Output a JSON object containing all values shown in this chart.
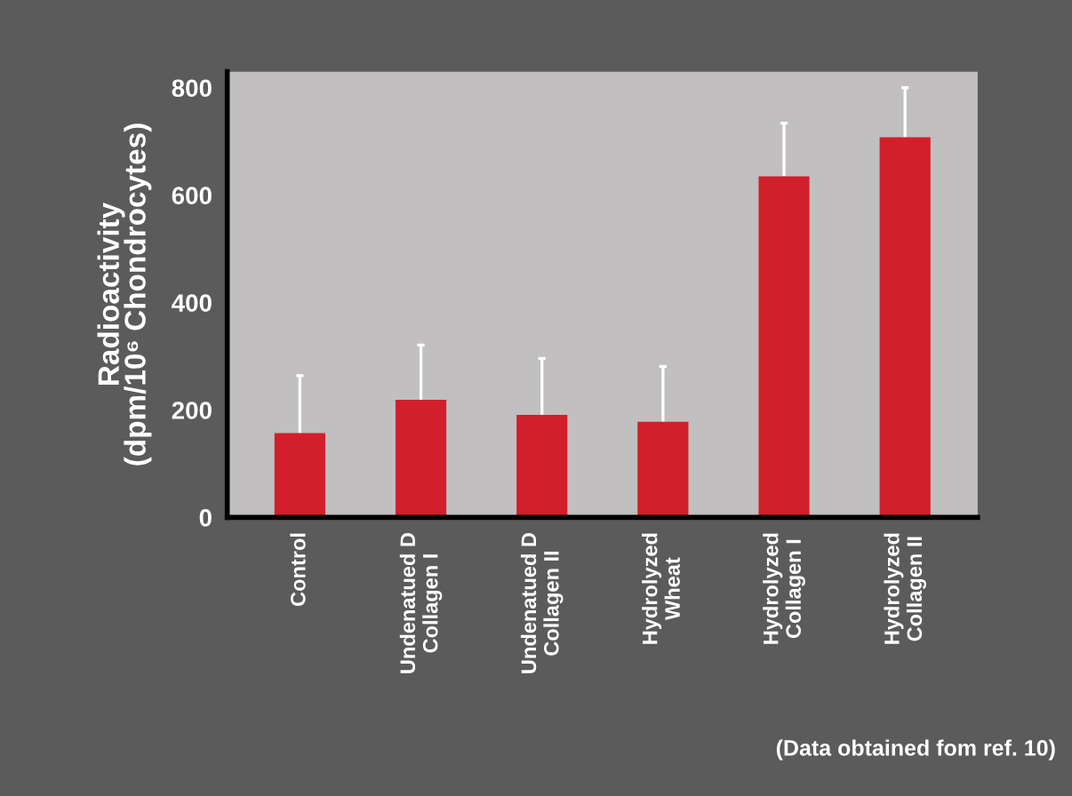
{
  "chart_data": {
    "type": "bar",
    "categories": [
      "Control",
      "Undenatued D\nCollagen I",
      "Undenatued D\nCollagen II",
      "Hydrolyzed\nWheat",
      "Hydrolyzed\nCollagen I",
      "Hydrolyzed\nCollagen II"
    ],
    "values": [
      157,
      219,
      191,
      178,
      635,
      708
    ],
    "errors": [
      [
        157,
        264
      ],
      [
        219,
        321
      ],
      [
        191,
        296
      ],
      [
        178,
        281
      ],
      [
        635,
        734
      ],
      [
        708,
        800
      ]
    ],
    "color": "#d21f2c",
    "ylabel": "Radioactivity\n(dpm/10⁶ Chondrocytes)",
    "ylim": [
      0,
      830
    ],
    "yticks": [
      0,
      200,
      400,
      600,
      800
    ],
    "grid": false,
    "legend": false,
    "annotations": [
      "(Data obtained fom ref. 10)"
    ]
  }
}
